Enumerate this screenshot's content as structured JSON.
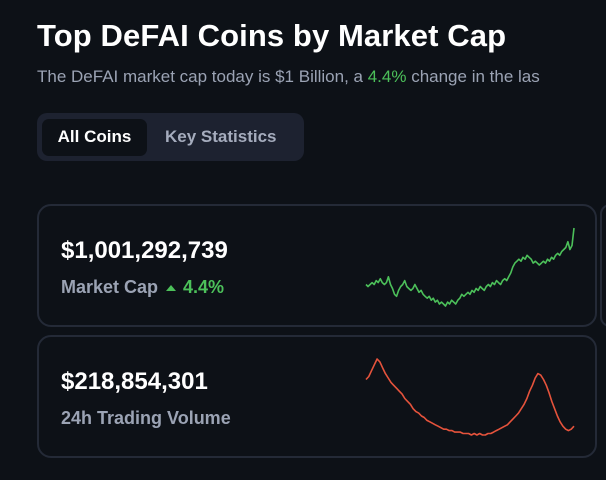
{
  "header": {
    "title": "Top DeFAI Coins by Market Cap",
    "subtitle_prefix": "The DeFAI market cap today is $1 Billion, a ",
    "subtitle_pct": "4.4%",
    "subtitle_suffix": " change in the las"
  },
  "tabs": [
    {
      "label": "All Coins",
      "active": true
    },
    {
      "label": "Key Statistics",
      "active": false
    }
  ],
  "stats": {
    "market_cap": {
      "value": "$1,001,292,739",
      "label": "Market Cap",
      "change": "4.4%",
      "change_direction": "up",
      "color": "#4cc05a",
      "sparkline": [
        22,
        21,
        22,
        23,
        22,
        24,
        23,
        25,
        23,
        22,
        23,
        26,
        22,
        20,
        17,
        16,
        19,
        21,
        22,
        24,
        21,
        20,
        19,
        20,
        22,
        20,
        18,
        19,
        17,
        16,
        15,
        16,
        14,
        15,
        13,
        14,
        12,
        13,
        12,
        11,
        13,
        12,
        14,
        13,
        12,
        14,
        15,
        17,
        16,
        17,
        18,
        17,
        19,
        18,
        20,
        19,
        21,
        20,
        19,
        21,
        22,
        21,
        23,
        22,
        24,
        23,
        22,
        24,
        25,
        24,
        26,
        28,
        31,
        33,
        34,
        35,
        34,
        36,
        35,
        37,
        36,
        35,
        33,
        34,
        33,
        32,
        33,
        34,
        33,
        35,
        34,
        36,
        35,
        37,
        38,
        37,
        39,
        40,
        41,
        44,
        40,
        42,
        51
      ]
    },
    "volume_24h": {
      "value": "$218,854,301",
      "label": "24h Trading Volume",
      "color": "#e5533c",
      "sparkline": [
        44,
        46,
        50,
        54,
        58,
        56,
        52,
        48,
        45,
        42,
        40,
        38,
        36,
        34,
        31,
        29,
        27,
        24,
        22,
        21,
        19,
        18,
        16,
        15,
        14,
        13,
        12,
        11,
        10,
        10,
        9,
        9,
        8,
        8,
        8,
        7,
        7,
        7,
        6,
        7,
        6,
        7,
        6,
        6,
        7,
        7,
        8,
        9,
        10,
        11,
        12,
        13,
        15,
        17,
        19,
        21,
        24,
        27,
        31,
        36,
        40,
        45,
        48,
        47,
        44,
        40,
        35,
        29,
        24,
        19,
        15,
        12,
        10,
        9,
        10,
        12
      ]
    }
  }
}
